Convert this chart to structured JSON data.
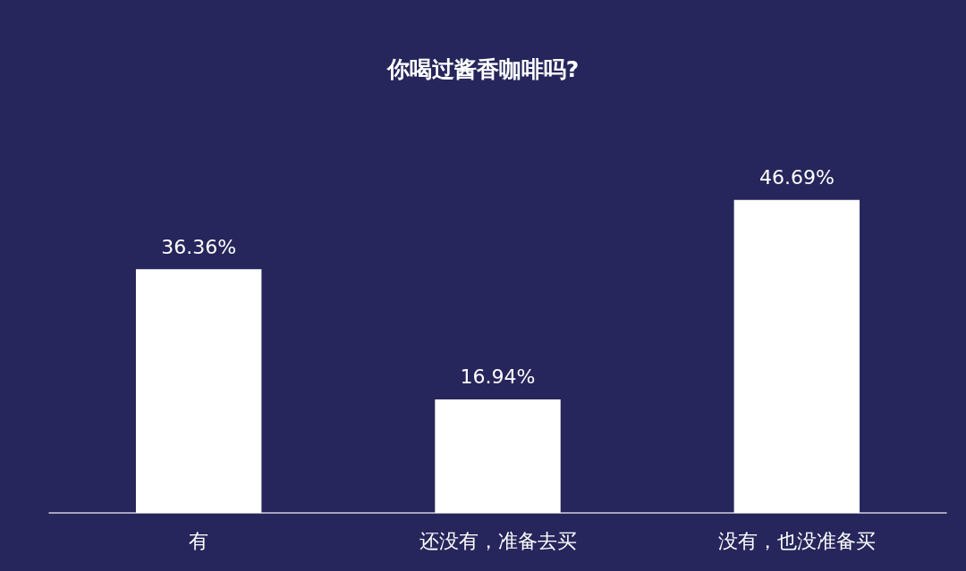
{
  "chart_data": {
    "type": "bar",
    "title": "你喝过酱香咖啡吗?",
    "categories": [
      "有",
      "还没有，准备去买",
      "没有，也没准备买"
    ],
    "values": [
      36.36,
      16.94,
      46.69
    ],
    "value_labels": [
      "36.36%",
      "16.94%",
      "46.69%"
    ],
    "color": "#ffffff",
    "tick_labels": "x"
  }
}
